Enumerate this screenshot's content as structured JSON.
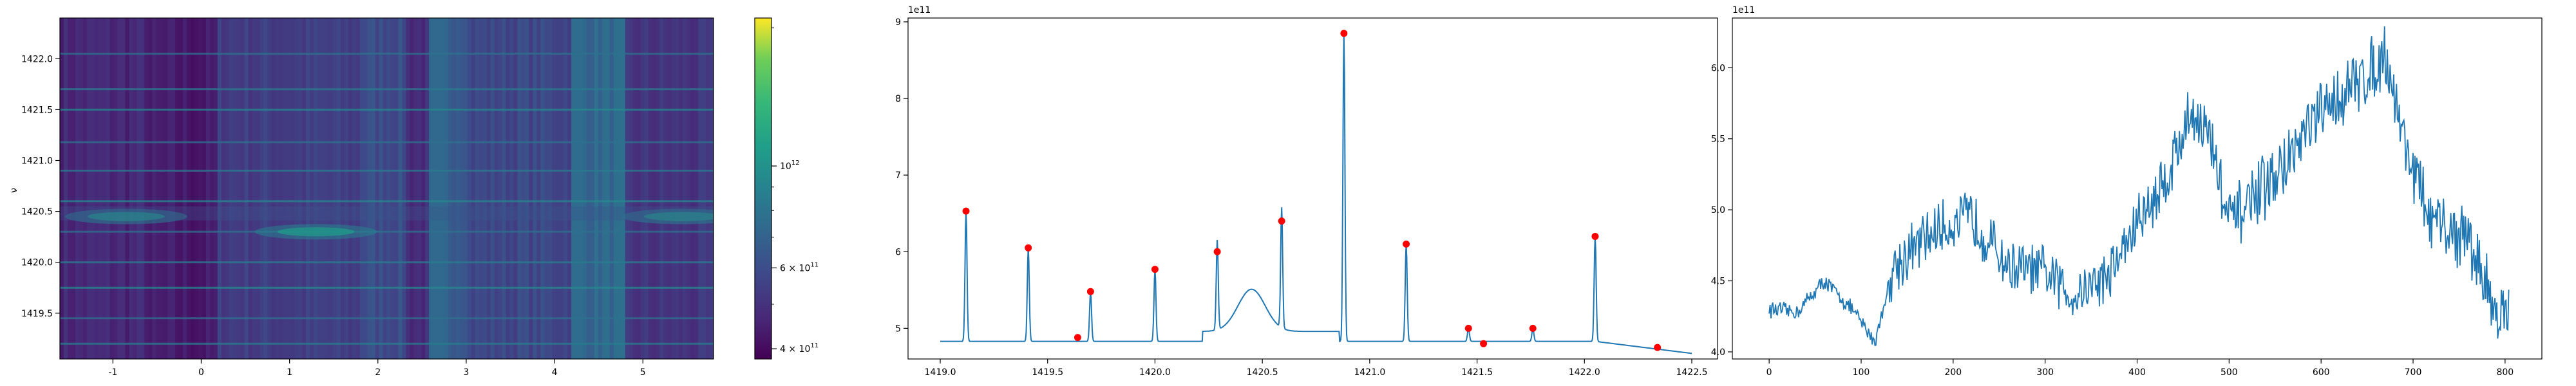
{
  "chart_data": [
    {
      "type": "heatmap",
      "title": "",
      "xlabel": "",
      "ylabel": "ν",
      "xlim": [
        -1.6,
        5.8
      ],
      "ylim": [
        1419.05,
        1422.4
      ],
      "x_ticks": [
        -1,
        0,
        1,
        2,
        3,
        4,
        5
      ],
      "y_ticks": [
        1419.5,
        1420.0,
        1420.5,
        1421.0,
        1421.5,
        1422.0
      ],
      "colormap": "viridis",
      "colorbar": {
        "scale": "log",
        "ticks": [
          {
            "value": 1000000000000.0,
            "base": "10",
            "exp": "12"
          },
          {
            "value": 600000000000.0,
            "base": "6 × 10",
            "exp": "11"
          },
          {
            "value": 400000000000.0,
            "base": "4 × 10",
            "exp": "11"
          }
        ],
        "range": [
          380000000000.0,
          2100000000000.0
        ]
      },
      "bright_bands_y": [
        1422.05,
        1421.7,
        1421.5,
        1421.18,
        1420.9,
        1420.6,
        1420.3,
        1420.0,
        1419.75,
        1419.45,
        1419.2
      ],
      "blobs": [
        {
          "x": -0.85,
          "y": 1420.45,
          "note": ""
        },
        {
          "x": 1.3,
          "y": 1420.3,
          "note": ""
        },
        {
          "x": 5.45,
          "y": 1420.45,
          "note": ""
        }
      ]
    },
    {
      "type": "line",
      "title": "",
      "xlabel": "",
      "ylabel": "",
      "offset_text": "1e11",
      "xlim": [
        1418.85,
        1422.62
      ],
      "ylim": [
        4.6,
        9.05
      ],
      "x_ticks": [
        1419.0,
        1419.5,
        1420.0,
        1420.5,
        1421.0,
        1421.5,
        1422.0,
        1422.5
      ],
      "y_ticks": [
        5,
        6,
        7,
        8,
        9
      ],
      "baseline": 4.83,
      "peaks": [
        {
          "x": 1419.12,
          "y": 6.53
        },
        {
          "x": 1419.41,
          "y": 6.05
        },
        {
          "x": 1419.7,
          "y": 5.48
        },
        {
          "x": 1420.0,
          "y": 5.77
        },
        {
          "x": 1420.29,
          "y": 6.0
        },
        {
          "x": 1420.59,
          "y": 6.4
        },
        {
          "x": 1420.88,
          "y": 8.85
        },
        {
          "x": 1421.17,
          "y": 6.1
        },
        {
          "x": 1421.46,
          "y": 5.0
        },
        {
          "x": 1421.76,
          "y": 5.0
        },
        {
          "x": 1422.05,
          "y": 6.2
        }
      ],
      "markers": [
        {
          "x": 1419.12,
          "y": 6.53
        },
        {
          "x": 1419.41,
          "y": 6.05
        },
        {
          "x": 1419.64,
          "y": 4.88
        },
        {
          "x": 1419.7,
          "y": 5.48
        },
        {
          "x": 1420.0,
          "y": 5.77
        },
        {
          "x": 1420.29,
          "y": 6.0
        },
        {
          "x": 1420.59,
          "y": 6.4
        },
        {
          "x": 1420.88,
          "y": 8.85
        },
        {
          "x": 1421.17,
          "y": 6.1
        },
        {
          "x": 1421.46,
          "y": 5.0
        },
        {
          "x": 1421.53,
          "y": 4.8
        },
        {
          "x": 1421.76,
          "y": 5.0
        },
        {
          "x": 1422.05,
          "y": 6.2
        },
        {
          "x": 1422.34,
          "y": 4.75
        }
      ],
      "line_color": "#1f77b4",
      "marker_color": "#ff0000"
    },
    {
      "type": "line",
      "title": "",
      "xlabel": "",
      "ylabel": "",
      "offset_text": "1e11",
      "xlim": [
        -40,
        840
      ],
      "ylim": [
        3.95,
        6.35
      ],
      "x_ticks": [
        0,
        100,
        200,
        300,
        400,
        500,
        600,
        700,
        800
      ],
      "y_ticks": [
        4.0,
        4.5,
        5.0,
        5.5,
        6.0
      ],
      "n_points": 805,
      "trend": [
        [
          0,
          4.3
        ],
        [
          30,
          4.28
        ],
        [
          60,
          4.5
        ],
        [
          90,
          4.3
        ],
        [
          115,
          4.07
        ],
        [
          135,
          4.6
        ],
        [
          180,
          4.85
        ],
        [
          220,
          4.95
        ],
        [
          260,
          4.6
        ],
        [
          300,
          4.55
        ],
        [
          330,
          4.4
        ],
        [
          370,
          4.55
        ],
        [
          400,
          4.9
        ],
        [
          430,
          5.2
        ],
        [
          460,
          5.7
        ],
        [
          480,
          5.5
        ],
        [
          500,
          4.9
        ],
        [
          530,
          5.1
        ],
        [
          560,
          5.3
        ],
        [
          590,
          5.6
        ],
        [
          620,
          5.8
        ],
        [
          650,
          5.95
        ],
        [
          670,
          6.1
        ],
        [
          690,
          5.5
        ],
        [
          720,
          4.9
        ],
        [
          760,
          4.8
        ],
        [
          790,
          4.3
        ],
        [
          800,
          4.25
        ]
      ],
      "line_color": "#1f77b4"
    }
  ]
}
